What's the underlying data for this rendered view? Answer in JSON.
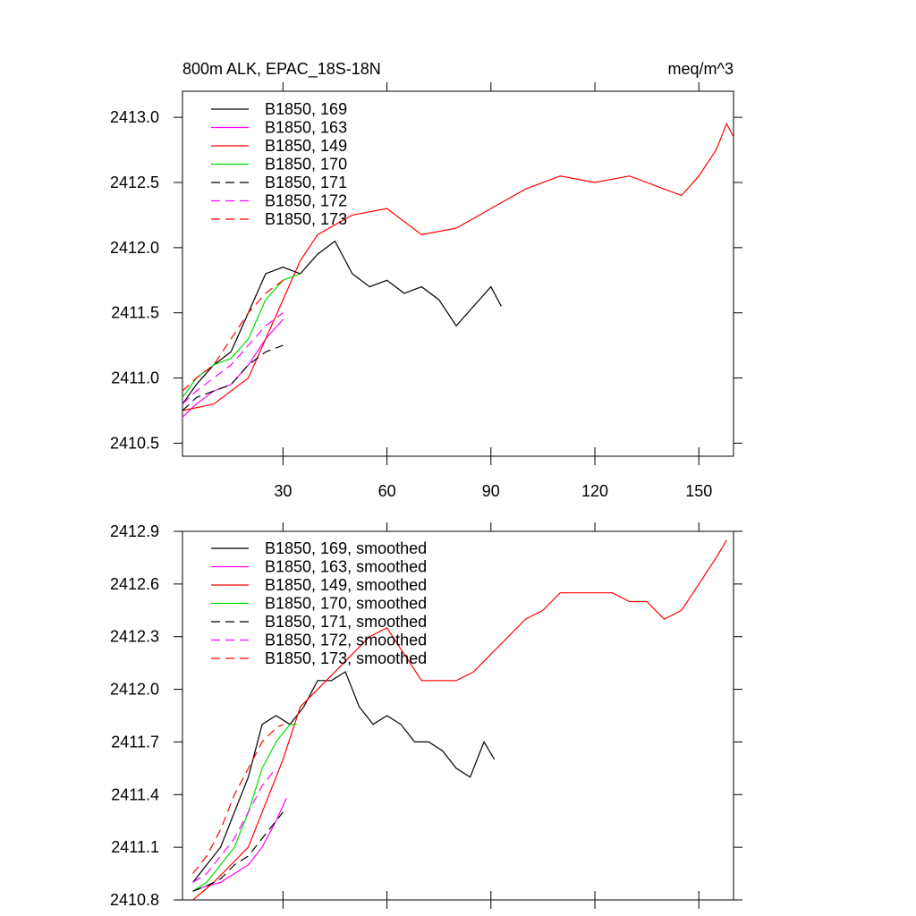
{
  "chart_data": [
    {
      "type": "line",
      "title": "800m ALK, EPAC_18S-18N",
      "units": "meq/m^3",
      "xlim": [
        1,
        160
      ],
      "ylim": [
        2410.4,
        2413.2
      ],
      "xticks": [
        30,
        60,
        90,
        120,
        150
      ],
      "xticklabels": [
        "30",
        "60",
        "90",
        "120",
        "150"
      ],
      "yticks": [
        2410.5,
        2411.0,
        2411.5,
        2412.0,
        2412.5,
        2413.0
      ],
      "yticklabels": [
        "2410.5",
        "2411.0",
        "2411.5",
        "2412.0",
        "2412.5",
        "2413.0"
      ],
      "legend_position": "top-left",
      "series": [
        {
          "name": "B1850, 169",
          "color": "#000000",
          "dash": "solid",
          "x": [
            1,
            5,
            10,
            15,
            20,
            25,
            30,
            35,
            40,
            45,
            50,
            55,
            60,
            65,
            70,
            75,
            80,
            85,
            90,
            93
          ],
          "y": [
            2410.8,
            2410.95,
            2411.1,
            2411.2,
            2411.5,
            2411.8,
            2411.85,
            2411.8,
            2411.95,
            2412.05,
            2411.8,
            2411.7,
            2411.75,
            2411.65,
            2411.7,
            2411.6,
            2411.4,
            2411.55,
            2411.7,
            2411.55
          ]
        },
        {
          "name": "B1850, 163",
          "color": "#ff00ff",
          "dash": "solid",
          "x": [
            1,
            5,
            10,
            15,
            20,
            25,
            30
          ],
          "y": [
            2410.7,
            2410.8,
            2410.9,
            2410.95,
            2411.1,
            2411.3,
            2411.45
          ]
        },
        {
          "name": "B1850, 149",
          "color": "#ff0000",
          "dash": "solid",
          "x": [
            1,
            10,
            20,
            30,
            35,
            40,
            50,
            60,
            70,
            80,
            90,
            100,
            110,
            120,
            130,
            140,
            145,
            150,
            155,
            158,
            160
          ],
          "y": [
            2410.75,
            2410.8,
            2411.0,
            2411.6,
            2411.9,
            2412.1,
            2412.25,
            2412.3,
            2412.1,
            2412.15,
            2412.3,
            2412.45,
            2412.55,
            2412.5,
            2412.55,
            2412.45,
            2412.4,
            2412.55,
            2412.75,
            2412.95,
            2412.85
          ]
        },
        {
          "name": "B1850, 170",
          "color": "#00dd00",
          "dash": "solid",
          "x": [
            1,
            5,
            10,
            15,
            20,
            25,
            30,
            35
          ],
          "y": [
            2410.85,
            2411.0,
            2411.1,
            2411.15,
            2411.3,
            2411.6,
            2411.75,
            2411.8
          ]
        },
        {
          "name": "B1850, 171",
          "color": "#000000",
          "dash": "dash",
          "x": [
            1,
            5,
            10,
            15,
            20,
            25,
            30
          ],
          "y": [
            2410.75,
            2410.85,
            2410.9,
            2410.95,
            2411.1,
            2411.2,
            2411.25
          ]
        },
        {
          "name": "B1850, 172",
          "color": "#ff00ff",
          "dash": "dash",
          "x": [
            1,
            5,
            10,
            15,
            20,
            25,
            30
          ],
          "y": [
            2410.8,
            2410.9,
            2411.0,
            2411.1,
            2411.25,
            2411.4,
            2411.5
          ]
        },
        {
          "name": "B1850, 173",
          "color": "#ff0000",
          "dash": "dash",
          "x": [
            1,
            5,
            10,
            15,
            20,
            25,
            30
          ],
          "y": [
            2410.9,
            2411.0,
            2411.1,
            2411.3,
            2411.5,
            2411.65,
            2411.75
          ]
        }
      ]
    },
    {
      "type": "line",
      "xlim": [
        1,
        160
      ],
      "ylim": [
        2410.8,
        2412.9
      ],
      "xticks": [
        30,
        60,
        90,
        120,
        150
      ],
      "yticks": [
        2410.8,
        2411.1,
        2411.4,
        2411.7,
        2412.0,
        2412.3,
        2412.6,
        2412.9
      ],
      "yticklabels": [
        "2410.8",
        "2411.1",
        "2411.4",
        "2411.7",
        "2412.0",
        "2412.3",
        "2412.6",
        "2412.9"
      ],
      "legend_position": "top-left",
      "series": [
        {
          "name": "B1850, 169, smoothed",
          "color": "#000000",
          "dash": "solid",
          "x": [
            4,
            8,
            12,
            16,
            20,
            24,
            28,
            32,
            36,
            40,
            44,
            48,
            52,
            56,
            60,
            64,
            68,
            72,
            76,
            80,
            84,
            88,
            91
          ],
          "y": [
            2410.9,
            2411.0,
            2411.1,
            2411.3,
            2411.5,
            2411.8,
            2411.85,
            2411.8,
            2411.9,
            2412.05,
            2412.05,
            2412.1,
            2411.9,
            2411.8,
            2411.85,
            2411.8,
            2411.7,
            2411.7,
            2411.65,
            2411.55,
            2411.5,
            2411.7,
            2411.6
          ]
        },
        {
          "name": "B1850, 163, smoothed",
          "color": "#ff00ff",
          "dash": "solid",
          "x": [
            4,
            8,
            12,
            16,
            20,
            24,
            28,
            31
          ],
          "y": [
            2410.85,
            2410.88,
            2410.9,
            2410.95,
            2411.0,
            2411.1,
            2411.25,
            2411.38
          ]
        },
        {
          "name": "B1850, 149, smoothed",
          "color": "#ff0000",
          "dash": "solid",
          "x": [
            4,
            10,
            20,
            30,
            35,
            40,
            45,
            50,
            55,
            60,
            65,
            70,
            75,
            80,
            85,
            90,
            95,
            100,
            105,
            110,
            115,
            120,
            125,
            130,
            135,
            140,
            145,
            150,
            155,
            158
          ],
          "y": [
            2410.8,
            2410.9,
            2411.1,
            2411.6,
            2411.9,
            2412.0,
            2412.1,
            2412.2,
            2412.3,
            2412.35,
            2412.2,
            2412.05,
            2412.05,
            2412.05,
            2412.1,
            2412.2,
            2412.3,
            2412.4,
            2412.45,
            2412.55,
            2412.55,
            2412.55,
            2412.55,
            2412.5,
            2412.5,
            2412.4,
            2412.45,
            2412.6,
            2412.75,
            2412.85
          ]
        },
        {
          "name": "B1850, 170, smoothed",
          "color": "#00dd00",
          "dash": "solid",
          "x": [
            4,
            8,
            12,
            16,
            20,
            24,
            28,
            32,
            34
          ],
          "y": [
            2410.85,
            2410.9,
            2411.0,
            2411.1,
            2411.3,
            2411.55,
            2411.7,
            2411.8,
            2411.8
          ]
        },
        {
          "name": "B1850, 171, smoothed",
          "color": "#000000",
          "dash": "dash",
          "x": [
            4,
            8,
            12,
            16,
            20,
            24,
            28,
            30
          ],
          "y": [
            2410.85,
            2410.88,
            2410.92,
            2411.0,
            2411.05,
            2411.15,
            2411.25,
            2411.3
          ]
        },
        {
          "name": "B1850, 172, smoothed",
          "color": "#ff00ff",
          "dash": "dash",
          "x": [
            4,
            8,
            12,
            16,
            20,
            24,
            28
          ],
          "y": [
            2410.9,
            2410.95,
            2411.05,
            2411.15,
            2411.3,
            2411.45,
            2411.55
          ]
        },
        {
          "name": "B1850, 173, smoothed",
          "color": "#ff0000",
          "dash": "dash",
          "x": [
            4,
            8,
            12,
            16,
            20,
            24,
            28,
            30
          ],
          "y": [
            2410.95,
            2411.05,
            2411.2,
            2411.4,
            2411.55,
            2411.7,
            2411.78,
            2411.8
          ]
        }
      ]
    }
  ]
}
